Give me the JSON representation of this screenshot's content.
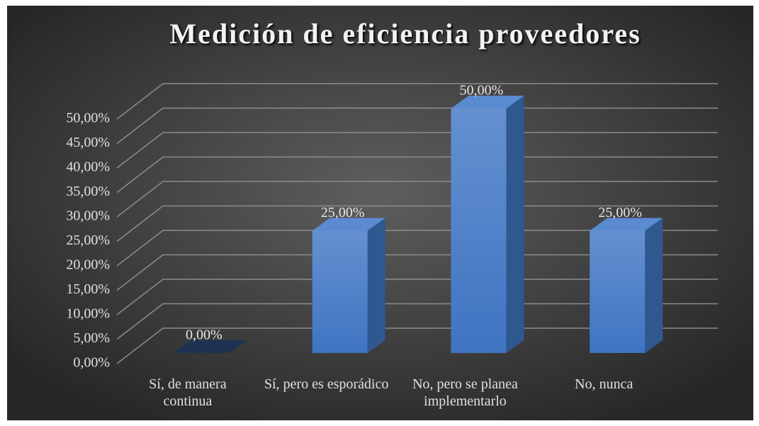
{
  "chart_data": {
    "type": "bar3d",
    "title": "Medición de eficiencia proveedores",
    "categories": [
      "Sí, de manera continua",
      "Sí, pero es esporádico",
      "No, pero se planea implementarlo",
      "No, nunca"
    ],
    "values": [
      0,
      25,
      50,
      25
    ],
    "value_labels": [
      "0,00%",
      "25,00%",
      "50,00%",
      "25,00%"
    ],
    "color": "#4a7ec6",
    "ylim": [
      0,
      50
    ],
    "yticks": [
      {
        "value": 0,
        "label": "0,00%"
      },
      {
        "value": 5,
        "label": "5,00%"
      },
      {
        "value": 10,
        "label": "10,00%"
      },
      {
        "value": 15,
        "label": "15,00%"
      },
      {
        "value": 20,
        "label": "20,00%"
      },
      {
        "value": 25,
        "label": "25,00%"
      },
      {
        "value": 30,
        "label": "30,00%"
      },
      {
        "value": 35,
        "label": "35,00%"
      },
      {
        "value": 40,
        "label": "40,00%"
      },
      {
        "value": 45,
        "label": "45,00%"
      },
      {
        "value": 50,
        "label": "50,00%"
      }
    ],
    "grid": true
  }
}
